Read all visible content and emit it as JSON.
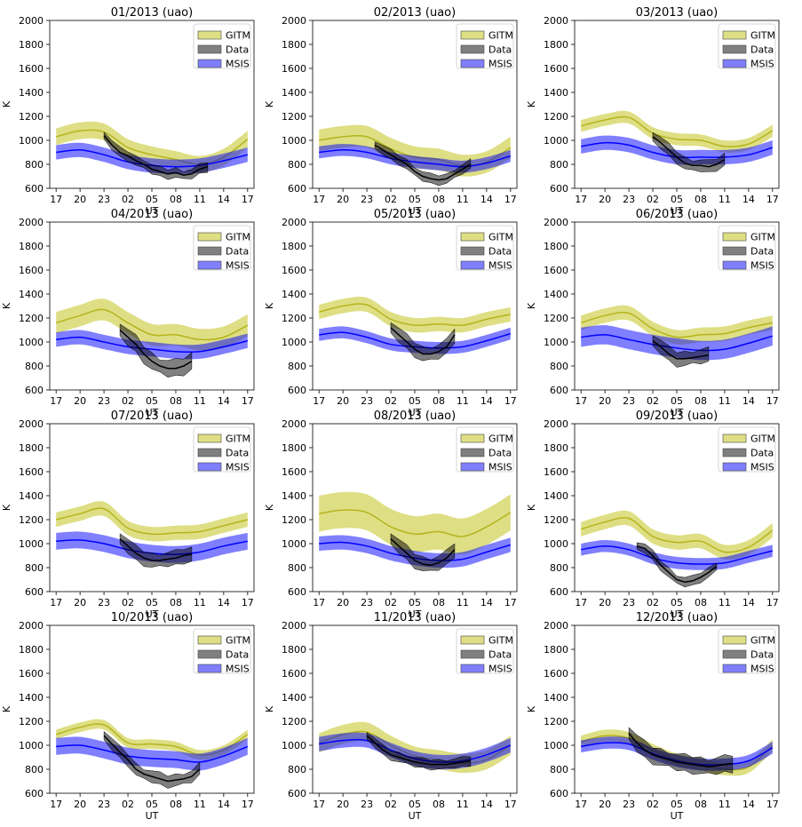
{
  "chart_data": {
    "type": "area",
    "layout": "4x3 grid of subplots",
    "x_ticks": [
      "17",
      "20",
      "23",
      "02",
      "05",
      "08",
      "11",
      "14",
      "17"
    ],
    "y_ticks": [
      600,
      800,
      1000,
      1200,
      1400,
      1600,
      1800,
      2000
    ],
    "ylim": [
      600,
      2000
    ],
    "xlabel": "UT",
    "ylabel": "K",
    "legend": {
      "placement": "top-right",
      "entries": [
        {
          "name": "GITM",
          "color": "#c8c832"
        },
        {
          "name": "Data",
          "color": "#000000"
        },
        {
          "name": "MSIS",
          "color": "#0000ff"
        }
      ]
    },
    "panels": [
      {
        "title": "01/2013 (uao)",
        "gitm": {
          "x": [
            17,
            20,
            23,
            26,
            29,
            32,
            35,
            38,
            41
          ],
          "y": [
            1030,
            1080,
            1070,
            940,
            880,
            840,
            800,
            860,
            1010
          ],
          "width": 70
        },
        "msis": {
          "x": [
            17,
            20,
            23,
            26,
            29,
            32,
            35,
            38,
            41
          ],
          "y": [
            900,
            920,
            880,
            820,
            790,
            780,
            790,
            830,
            880
          ],
          "width": 60
        },
        "data": {
          "x": [
            23,
            24,
            25,
            26,
            27,
            28,
            29,
            30,
            31,
            32,
            33,
            34,
            35,
            36
          ],
          "y": [
            1040,
            960,
            900,
            870,
            830,
            800,
            760,
            740,
            720,
            730,
            710,
            720,
            760,
            780
          ],
          "width": 40
        }
      },
      {
        "title": "02/2013 (uao)",
        "gitm": {
          "x": [
            17,
            20,
            23,
            26,
            29,
            32,
            35,
            38,
            41
          ],
          "y": [
            1000,
            1030,
            1030,
            930,
            860,
            840,
            790,
            820,
            940
          ],
          "width": 90
        },
        "msis": {
          "x": [
            17,
            20,
            23,
            26,
            29,
            32,
            35,
            38,
            41
          ],
          "y": [
            900,
            920,
            900,
            850,
            820,
            800,
            780,
            810,
            870
          ],
          "width": 50
        },
        "data": {
          "x": [
            24,
            25,
            26,
            27,
            28,
            29,
            30,
            31,
            32,
            33,
            34,
            35,
            36
          ],
          "y": [
            960,
            920,
            880,
            840,
            800,
            740,
            700,
            680,
            670,
            680,
            720,
            760,
            800
          ],
          "width": 40
        }
      },
      {
        "title": "03/2013 (uao)",
        "gitm": {
          "x": [
            17,
            20,
            23,
            26,
            29,
            32,
            35,
            38,
            41
          ],
          "y": [
            1120,
            1170,
            1190,
            1060,
            1010,
            1000,
            950,
            970,
            1080
          ],
          "width": 50
        },
        "msis": {
          "x": [
            17,
            20,
            23,
            26,
            29,
            32,
            35,
            38,
            41
          ],
          "y": [
            950,
            980,
            960,
            900,
            860,
            860,
            860,
            880,
            940
          ],
          "width": 60
        },
        "data": {
          "x": [
            26,
            27,
            28,
            29,
            30,
            31,
            32,
            33,
            34,
            35
          ],
          "y": [
            1030,
            980,
            920,
            860,
            810,
            790,
            790,
            780,
            800,
            840
          ],
          "width": 50
        }
      },
      {
        "title": "04/2013 (uao)",
        "gitm": {
          "x": [
            17,
            20,
            23,
            26,
            29,
            32,
            35,
            38,
            41
          ],
          "y": [
            1160,
            1220,
            1270,
            1160,
            1060,
            1060,
            1020,
            1040,
            1140
          ],
          "width": 90
        },
        "msis": {
          "x": [
            17,
            20,
            23,
            26,
            29,
            32,
            35,
            38,
            41
          ],
          "y": [
            1020,
            1040,
            1000,
            960,
            940,
            920,
            920,
            960,
            1010
          ],
          "width": 60
        },
        "data": {
          "x": [
            25,
            26,
            27,
            28,
            29,
            30,
            31,
            32,
            33,
            34
          ],
          "y": [
            1100,
            1040,
            980,
            900,
            840,
            800,
            780,
            780,
            800,
            840
          ],
          "width": 70
        }
      },
      {
        "title": "05/2013 (uao)",
        "gitm": {
          "x": [
            17,
            20,
            23,
            26,
            29,
            32,
            35,
            38,
            41
          ],
          "y": [
            1250,
            1300,
            1310,
            1190,
            1140,
            1150,
            1140,
            1190,
            1230
          ],
          "width": 60
        },
        "msis": {
          "x": [
            17,
            20,
            23,
            26,
            29,
            32,
            35,
            38,
            41
          ],
          "y": [
            1060,
            1080,
            1040,
            980,
            960,
            950,
            960,
            1010,
            1070
          ],
          "width": 50
        },
        "data": {
          "x": [
            26,
            27,
            28,
            29,
            30,
            31,
            32,
            33,
            34
          ],
          "y": [
            1120,
            1060,
            1000,
            940,
            900,
            900,
            920,
            960,
            1060
          ],
          "width": 60
        }
      },
      {
        "title": "06/2013 (uao)",
        "gitm": {
          "x": [
            17,
            20,
            23,
            26,
            29,
            32,
            35,
            38,
            41
          ],
          "y": [
            1160,
            1220,
            1240,
            1110,
            1040,
            1060,
            1070,
            1120,
            1160
          ],
          "width": 60
        },
        "msis": {
          "x": [
            17,
            20,
            23,
            26,
            29,
            32,
            35,
            38,
            41
          ],
          "y": [
            1040,
            1060,
            1020,
            980,
            950,
            930,
            940,
            990,
            1050
          ],
          "width": 80
        },
        "data": {
          "x": [
            26,
            27,
            28,
            29,
            30,
            31,
            32,
            33
          ],
          "y": [
            1010,
            960,
            900,
            860,
            860,
            870,
            880,
            890
          ],
          "width": 60
        }
      },
      {
        "title": "07/2013 (uao)",
        "gitm": {
          "x": [
            17,
            20,
            23,
            26,
            29,
            32,
            35,
            38,
            41
          ],
          "y": [
            1200,
            1250,
            1290,
            1130,
            1080,
            1090,
            1100,
            1150,
            1200
          ],
          "width": 60
        },
        "msis": {
          "x": [
            17,
            20,
            23,
            26,
            29,
            32,
            35,
            38,
            41
          ],
          "y": [
            1020,
            1030,
            1000,
            950,
            920,
            910,
            930,
            980,
            1020
          ],
          "width": 70
        },
        "data": {
          "x": [
            25,
            26,
            27,
            28,
            29,
            30,
            31,
            32,
            33,
            34
          ],
          "y": [
            1040,
            980,
            920,
            880,
            860,
            860,
            870,
            880,
            900,
            910
          ],
          "width": 60
        }
      },
      {
        "title": "08/2013 (uao)",
        "gitm": {
          "x": [
            17,
            20,
            23,
            26,
            29,
            32,
            35,
            38,
            41
          ],
          "y": [
            1250,
            1280,
            1260,
            1140,
            1080,
            1100,
            1060,
            1140,
            1260
          ],
          "width": 150
        },
        "msis": {
          "x": [
            17,
            20,
            23,
            26,
            29,
            32,
            35,
            38,
            41
          ],
          "y": [
            1000,
            1010,
            980,
            920,
            880,
            860,
            870,
            930,
            990
          ],
          "width": 60
        },
        "data": {
          "x": [
            26,
            27,
            28,
            29,
            30,
            31,
            32,
            33,
            34
          ],
          "y": [
            1040,
            980,
            920,
            860,
            830,
            820,
            840,
            880,
            950
          ],
          "width": 60
        }
      },
      {
        "title": "09/2013 (uao)",
        "gitm": {
          "x": [
            17,
            20,
            23,
            26,
            29,
            32,
            35,
            38,
            41
          ],
          "y": [
            1120,
            1180,
            1210,
            1060,
            1010,
            1020,
            930,
            970,
            1110
          ],
          "width": 60
        },
        "msis": {
          "x": [
            17,
            20,
            23,
            26,
            29,
            32,
            35,
            38,
            41
          ],
          "y": [
            950,
            980,
            950,
            880,
            840,
            830,
            840,
            890,
            940
          ],
          "width": 50
        },
        "data": {
          "x": [
            24,
            25,
            26,
            27,
            28,
            29,
            30,
            31,
            32,
            33,
            34
          ],
          "y": [
            980,
            960,
            900,
            820,
            760,
            700,
            680,
            690,
            720,
            760,
            810
          ],
          "width": 40
        }
      },
      {
        "title": "10/2013 (uao)",
        "gitm": {
          "x": [
            17,
            20,
            23,
            26,
            29,
            32,
            35,
            38,
            41
          ],
          "y": [
            1090,
            1150,
            1170,
            1020,
            1010,
            990,
            920,
            960,
            1090
          ],
          "width": 40
        },
        "msis": {
          "x": [
            17,
            20,
            23,
            26,
            29,
            32,
            35,
            38,
            41
          ],
          "y": [
            990,
            1000,
            960,
            910,
            890,
            880,
            860,
            910,
            990
          ],
          "width": 70
        },
        "data": {
          "x": [
            23,
            24,
            25,
            26,
            27,
            28,
            29,
            30,
            31,
            32,
            33,
            34,
            35
          ],
          "y": [
            1080,
            1010,
            940,
            880,
            800,
            760,
            740,
            720,
            700,
            710,
            720,
            740,
            800
          ],
          "width": 50
        }
      },
      {
        "title": "11/2013 (uao)",
        "gitm": {
          "x": [
            17,
            20,
            23,
            26,
            29,
            32,
            35,
            38,
            41
          ],
          "y": [
            1020,
            1090,
            1110,
            1000,
            910,
            880,
            850,
            880,
            1000
          ],
          "width": 80
        },
        "msis": {
          "x": [
            17,
            20,
            23,
            26,
            29,
            32,
            35,
            38,
            41
          ],
          "y": [
            1010,
            1040,
            1040,
            960,
            890,
            860,
            870,
            920,
            1000
          ],
          "width": 60
        },
        "data": {
          "x": [
            23,
            24,
            25,
            26,
            27,
            28,
            29,
            30,
            31,
            32,
            33,
            34,
            35,
            36
          ],
          "y": [
            1080,
            1020,
            960,
            920,
            900,
            880,
            860,
            850,
            840,
            840,
            840,
            850,
            860,
            870
          ],
          "width": 40
        }
      },
      {
        "title": "12/2013 (uao)",
        "gitm": {
          "x": [
            17,
            20,
            23,
            26,
            29,
            32,
            35,
            38,
            41
          ],
          "y": [
            1030,
            1080,
            1060,
            960,
            880,
            840,
            800,
            820,
            1000
          ],
          "width": 50
        },
        "msis": {
          "x": [
            17,
            20,
            23,
            26,
            29,
            32,
            35,
            38,
            41
          ],
          "y": [
            990,
            1020,
            1010,
            930,
            870,
            840,
            840,
            870,
            980
          ],
          "width": 50
        },
        "data": {
          "x": [
            23,
            24,
            25,
            26,
            27,
            28,
            29,
            30,
            31,
            32,
            33,
            34,
            35,
            36
          ],
          "y": [
            1100,
            1020,
            960,
            920,
            900,
            880,
            860,
            850,
            840,
            830,
            820,
            830,
            840,
            850
          ],
          "width": 70
        }
      }
    ]
  }
}
